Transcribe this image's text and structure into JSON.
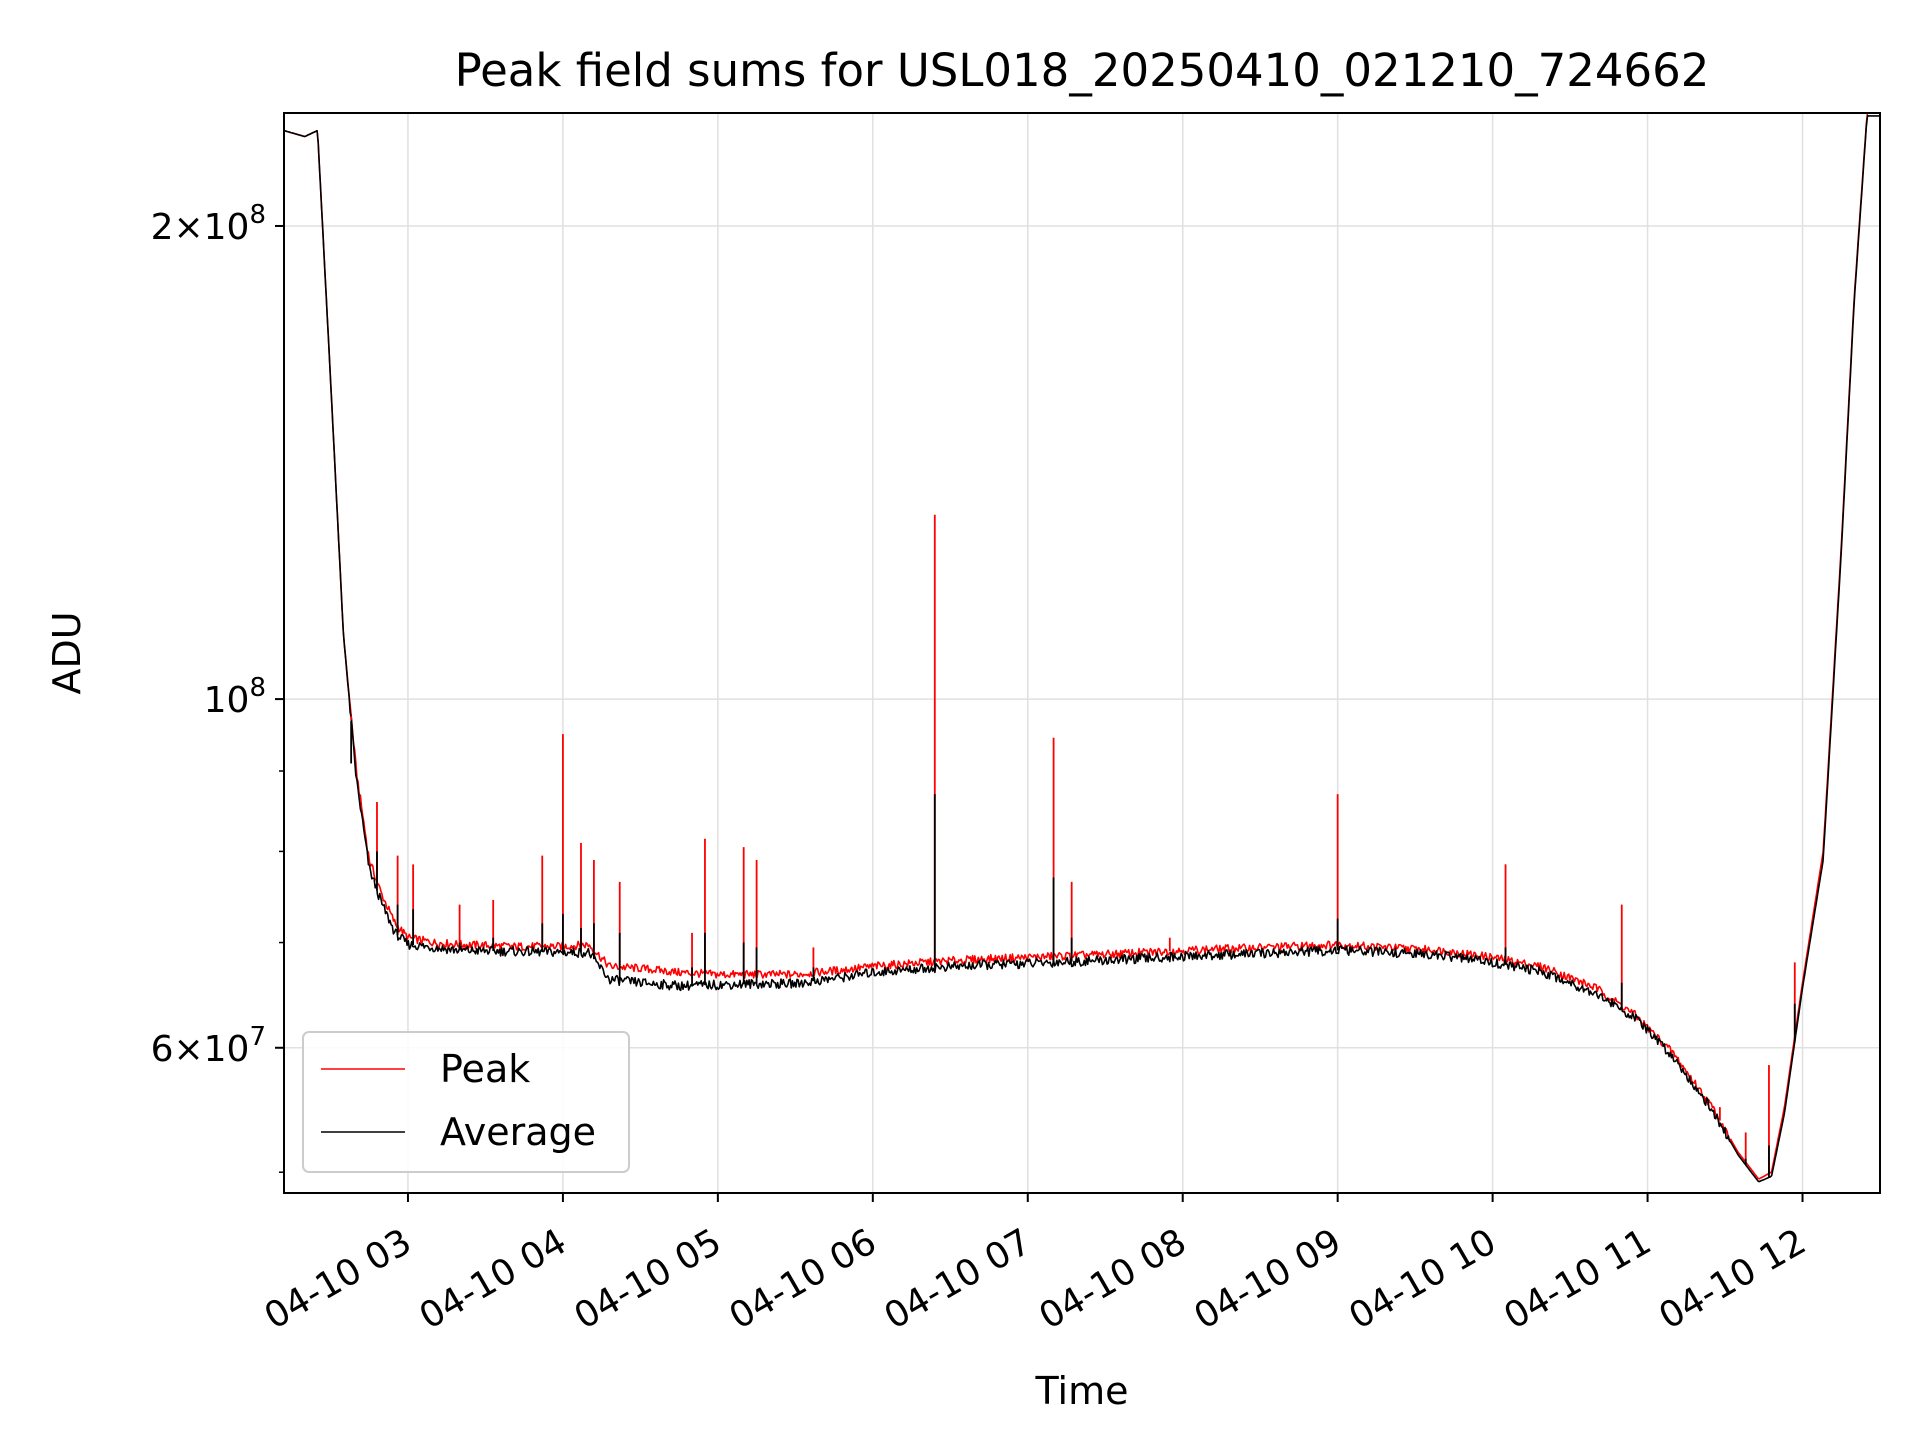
{
  "chart_data": {
    "type": "line",
    "title": "Peak field sums for USL018_20250410_021210_724662",
    "xlabel": "Time",
    "ylabel": "ADU",
    "yscale": "log",
    "xlim": [
      "2025-04-10 02:12",
      "2025-04-10 12:30"
    ],
    "ylim": [
      48500000,
      236000000
    ],
    "x_ticks": [
      "04-10 03",
      "04-10 04",
      "04-10 05",
      "04-10 06",
      "04-10 07",
      "04-10 08",
      "04-10 09",
      "04-10 10",
      "04-10 11",
      "04-10 12"
    ],
    "y_ticks": [
      {
        "value": 60000000,
        "mantissa": "6",
        "exponent": "7"
      },
      {
        "value": 100000000,
        "mantissa": "",
        "exponent": "8"
      },
      {
        "value": 200000000,
        "mantissa": "2",
        "exponent": "8"
      }
    ],
    "grid": true,
    "legend_position": "lower-left",
    "colors": {
      "peak": "#ff0000",
      "average": "#000000",
      "grid": "#e0e0e0"
    },
    "series": [
      {
        "name": "Peak",
        "x": [
          "02:12",
          "02:20",
          "02:25",
          "02:30",
          "02:35",
          "02:40",
          "02:45",
          "02:50",
          "02:55",
          "03:00",
          "03:10",
          "03:20",
          "03:40",
          "04:00",
          "04:10",
          "04:18",
          "04:30",
          "04:45",
          "05:00",
          "05:15",
          "05:30",
          "05:50",
          "06:00",
          "06:20",
          "06:40",
          "07:00",
          "07:30",
          "08:00",
          "08:30",
          "09:00",
          "09:20",
          "09:40",
          "10:00",
          "10:20",
          "10:40",
          "10:55",
          "11:10",
          "11:25",
          "11:35",
          "11:43",
          "11:48",
          "11:53",
          "12:00",
          "12:08",
          "12:15",
          "12:20",
          "12:25"
        ],
        "y": [
          230000000,
          228000000,
          230000000,
          160000000,
          110000000,
          90000000,
          79000000,
          75000000,
          72000000,
          70500000,
          70000000,
          69800000,
          69600000,
          69600000,
          69800000,
          67600000,
          67400000,
          67000000,
          66800000,
          66800000,
          66800000,
          67300000,
          67600000,
          68000000,
          68300000,
          68500000,
          68800000,
          69200000,
          69500000,
          69800000,
          69500000,
          69200000,
          68500000,
          67500000,
          65500000,
          63000000,
          59500000,
          55000000,
          51500000,
          49500000,
          50000000,
          55000000,
          66000000,
          80000000,
          125000000,
          180000000,
          236000000
        ]
      },
      {
        "name": "Average",
        "x": [
          "02:12",
          "02:20",
          "02:25",
          "02:30",
          "02:35",
          "02:40",
          "02:45",
          "02:50",
          "02:55",
          "03:00",
          "03:10",
          "03:20",
          "03:40",
          "04:00",
          "04:10",
          "04:18",
          "04:30",
          "04:45",
          "05:00",
          "05:15",
          "05:30",
          "05:50",
          "06:00",
          "06:20",
          "06:40",
          "07:00",
          "07:30",
          "08:00",
          "08:30",
          "09:00",
          "09:20",
          "09:40",
          "10:00",
          "10:20",
          "10:40",
          "10:55",
          "11:10",
          "11:25",
          "11:35",
          "11:43",
          "11:48",
          "11:53",
          "12:00",
          "12:08",
          "12:15",
          "12:20",
          "12:25"
        ],
        "y": [
          230000000,
          228000000,
          230000000,
          160000000,
          110000000,
          89000000,
          78000000,
          74000000,
          71000000,
          69800000,
          69500000,
          69200000,
          69100000,
          69000000,
          69000000,
          66300000,
          66000000,
          65700000,
          65800000,
          65900000,
          65900000,
          66600000,
          67000000,
          67400000,
          67700000,
          67900000,
          68200000,
          68600000,
          68900000,
          69200000,
          69000000,
          68700000,
          68000000,
          67000000,
          65000000,
          62700000,
          59200000,
          54800000,
          51300000,
          49300000,
          49700000,
          54500000,
          65500000,
          79000000,
          124000000,
          179000000,
          235000000
        ]
      }
    ],
    "spikes": [
      {
        "time": "02:38",
        "peak": 97000000,
        "average": 91000000
      },
      {
        "time": "02:48",
        "peak": 86000000,
        "average": 80000000
      },
      {
        "time": "02:56",
        "peak": 79500000,
        "average": 74000000
      },
      {
        "time": "03:02",
        "peak": 78500000,
        "average": 73500000
      },
      {
        "time": "03:20",
        "peak": 74000000,
        "average": 70000000
      },
      {
        "time": "03:33",
        "peak": 74500000,
        "average": 70500000
      },
      {
        "time": "03:52",
        "peak": 79500000,
        "average": 72000000
      },
      {
        "time": "04:00",
        "peak": 95000000,
        "average": 73000000
      },
      {
        "time": "04:07",
        "peak": 81000000,
        "average": 71500000
      },
      {
        "time": "04:12",
        "peak": 79000000,
        "average": 72000000
      },
      {
        "time": "04:22",
        "peak": 76500000,
        "average": 71000000
      },
      {
        "time": "04:50",
        "peak": 71000000,
        "average": 67500000
      },
      {
        "time": "04:55",
        "peak": 81500000,
        "average": 71000000
      },
      {
        "time": "05:10",
        "peak": 80500000,
        "average": 70000000
      },
      {
        "time": "05:15",
        "peak": 79000000,
        "average": 69500000
      },
      {
        "time": "05:37",
        "peak": 69500000,
        "average": 67500000
      },
      {
        "time": "06:24",
        "peak": 131000000,
        "average": 87000000
      },
      {
        "time": "07:10",
        "peak": 94500000,
        "average": 77000000
      },
      {
        "time": "07:17",
        "peak": 76500000,
        "average": 70500000
      },
      {
        "time": "07:55",
        "peak": 70500000,
        "average": 68500000
      },
      {
        "time": "09:00",
        "peak": 87000000,
        "average": 72500000
      },
      {
        "time": "10:05",
        "peak": 78500000,
        "average": 69500000
      },
      {
        "time": "10:50",
        "peak": 74000000,
        "average": 66000000
      },
      {
        "time": "11:28",
        "peak": 55000000,
        "average": 53500000
      },
      {
        "time": "11:38",
        "peak": 53000000,
        "average": 51000000
      },
      {
        "time": "11:47",
        "peak": 58500000,
        "average": 52000000
      },
      {
        "time": "11:57",
        "peak": 68000000,
        "average": 64000000
      }
    ],
    "legend": [
      {
        "label": "Peak",
        "color": "#ff0000"
      },
      {
        "label": "Average",
        "color": "#000000"
      }
    ]
  }
}
